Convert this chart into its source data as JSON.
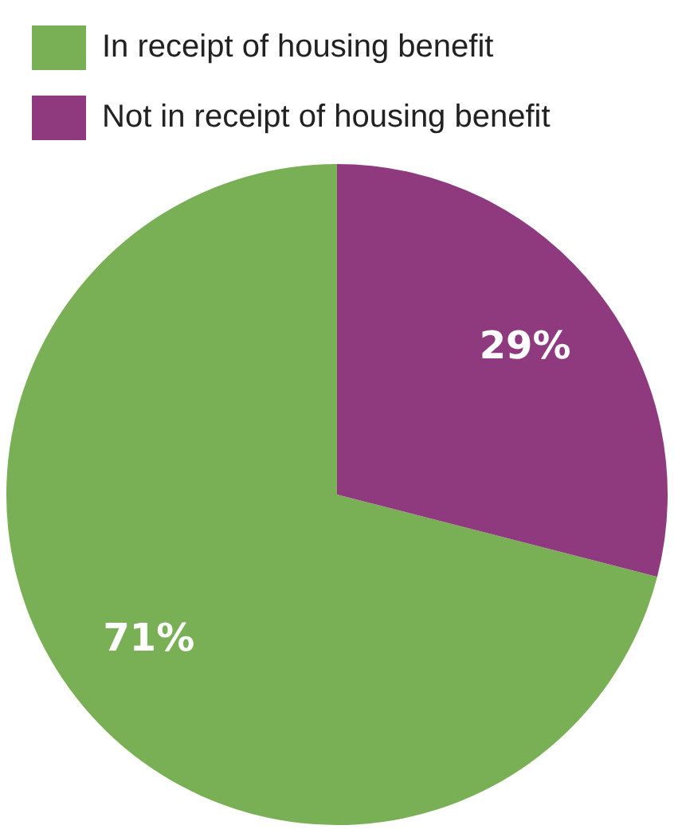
{
  "chart_data": {
    "type": "pie",
    "categories": [
      "In receipt of housing benefit",
      "Not in receipt of housing benefit"
    ],
    "values": [
      71,
      29
    ],
    "colors": [
      "#7ab055",
      "#8f3a7e"
    ],
    "value_labels": [
      "71%",
      "29%"
    ],
    "legend": "top left"
  }
}
